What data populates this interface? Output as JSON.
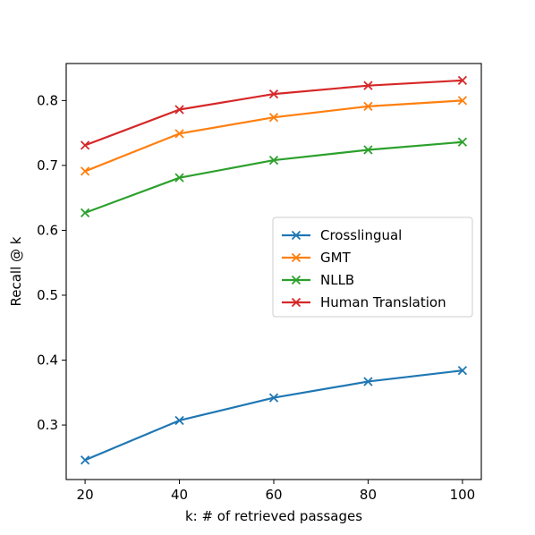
{
  "chart_data": {
    "type": "line",
    "title": "",
    "xlabel": "k: # of retrieved passages",
    "ylabel": "Recall @ k",
    "x": [
      20,
      40,
      60,
      80,
      100
    ],
    "xticks": [
      "20",
      "40",
      "60",
      "80",
      "100"
    ],
    "yticks": [
      "0.3",
      "0.4",
      "0.5",
      "0.6",
      "0.7",
      "0.8"
    ],
    "ytick_values": [
      0.3,
      0.4,
      0.5,
      0.6,
      0.7,
      0.8
    ],
    "xlim": [
      16,
      104
    ],
    "ylim": [
      0.216,
      0.857
    ],
    "grid": false,
    "legend_position": "center-right",
    "marker": "x",
    "series": [
      {
        "name": "Crosslingual",
        "color": "#1f77b4",
        "values": [
          0.246,
          0.307,
          0.342,
          0.367,
          0.384
        ]
      },
      {
        "name": "GMT",
        "color": "#ff7f0e",
        "values": [
          0.691,
          0.749,
          0.774,
          0.791,
          0.8
        ]
      },
      {
        "name": "NLLB",
        "color": "#2ca02c",
        "values": [
          0.627,
          0.681,
          0.708,
          0.724,
          0.736
        ]
      },
      {
        "name": "Human Translation",
        "color": "#d62728",
        "values": [
          0.731,
          0.786,
          0.81,
          0.823,
          0.831
        ]
      }
    ]
  }
}
